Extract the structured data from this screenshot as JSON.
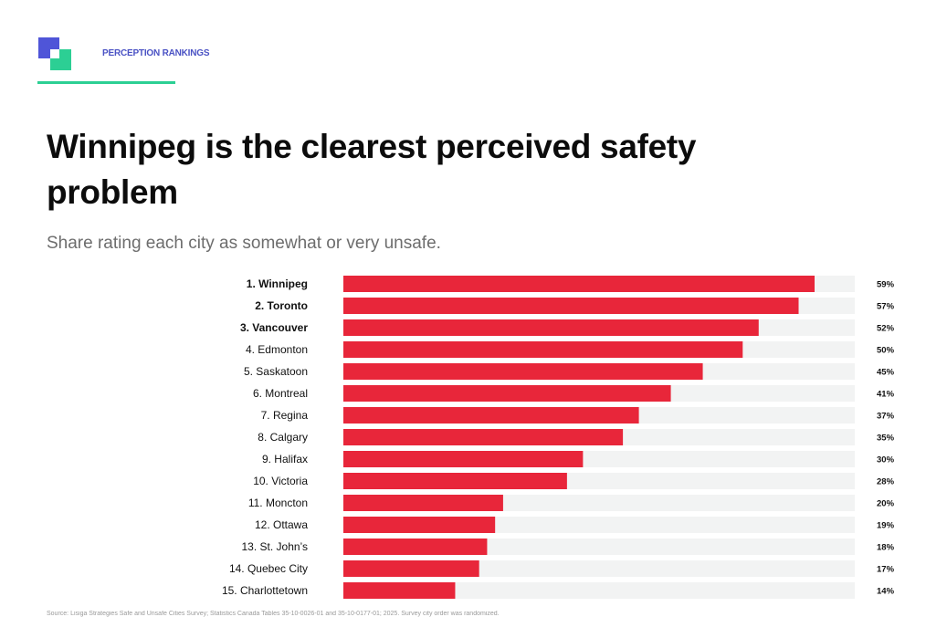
{
  "header": {
    "section_label": "PERCEPTION RANKINGS",
    "title": "Winnipeg is the clearest perceived safety problem",
    "subtitle": "Share rating each city as somewhat or very unsafe."
  },
  "colors": {
    "bar": "#e8263a",
    "track": "#f2f3f3",
    "accent_green": "#2ccf94",
    "accent_blue": "#4f55d8"
  },
  "chart_data": {
    "type": "bar",
    "orientation": "horizontal",
    "categories": [
      "1. Winnipeg",
      "2. Toronto",
      "3. Vancouver",
      "4. Edmonton",
      "5. Saskatoon",
      "6. Montreal",
      "7. Regina",
      "8. Calgary",
      "9. Halifax",
      "10. Victoria",
      "11. Moncton",
      "12. Ottawa",
      "13. St. John’s",
      "14. Quebec City",
      "15. Charlottetown"
    ],
    "values": [
      59,
      57,
      52,
      50,
      45,
      41,
      37,
      35,
      30,
      28,
      20,
      19,
      18,
      17,
      14
    ],
    "value_labels": [
      "59%",
      "57%",
      "52%",
      "50%",
      "45%",
      "41%",
      "37%",
      "35%",
      "30%",
      "28%",
      "20%",
      "19%",
      "18%",
      "17%",
      "14%"
    ],
    "bold_categories": 3,
    "xlim": [
      0,
      64
    ],
    "title": "Winnipeg is the clearest perceived safety problem",
    "subtitle": "Share rating each city as somewhat or very unsafe.",
    "xlabel": "",
    "ylabel": "",
    "grid": false,
    "legend": "none"
  },
  "footnote": "Source: Lisiga Strategies Safe and Unsafe Cities Survey; Statistics Canada Tables 35-10-0026-01 and 35-10-0177-01; 2025. Survey city order was randomized."
}
